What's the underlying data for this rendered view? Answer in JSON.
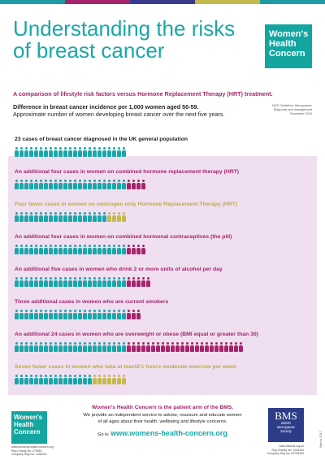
{
  "header": {
    "title_line1": "Understanding the risks",
    "title_line2": "of breast cancer",
    "logo_lines": [
      "Women's",
      "Health",
      "Concern"
    ]
  },
  "intro": {
    "subtitle": "A comparison of lifestyle risk factors versus Hormone Replacement Therapy (HRT) treatment.",
    "difference_bold": "Difference in breast cancer incidence per 1,000 women aged 50-59.",
    "difference_text": "Approximate number of women developing breast cancer over the next five years.",
    "nice_note": [
      "NICE Guideline, Menopause:",
      "Diagnosis and management",
      "November 2015"
    ]
  },
  "colors": {
    "teal": "#1aa7a8",
    "pink": "#a6246b",
    "olive": "#c5b94f"
  },
  "rows": [
    {
      "label": "23 cases of breast cancer diagnosed in the UK general population",
      "label_color": "dark",
      "teal": 23,
      "pink": 0,
      "olive": 0
    },
    {
      "label": "An additional four cases in women on combined hormone replacement therapy (HRT)",
      "label_color": "pink",
      "teal": 23,
      "pink": 4,
      "olive": 0
    },
    {
      "label": "Four fewer  cases in women on oestrogen only Hormone Replacement Therapy (HRT)",
      "label_color": "olive",
      "teal": 19,
      "pink": 0,
      "olive": 4
    },
    {
      "label": "An additional four cases in women on combined hormonal contraceptives (the pill)",
      "label_color": "pink",
      "teal": 23,
      "pink": 4,
      "olive": 0
    },
    {
      "label": "An additional five cases in women who drink 2 or more units of alcohol per day",
      "label_color": "pink",
      "teal": 23,
      "pink": 5,
      "olive": 0
    },
    {
      "label": "Three additional cases in women who are current smokers",
      "label_color": "pink",
      "teal": 23,
      "pink": 3,
      "olive": 0
    },
    {
      "label": "An additional 24 cases in women who are overweight or obese (BMI equal or greater than 30)",
      "label_color": "pink",
      "teal": 23,
      "pink": 24,
      "olive": 0
    },
    {
      "label": "Seven fewer cases in women who take at least2½ hours moderate exercise per week",
      "label_color": "olive",
      "teal": 16,
      "pink": 0,
      "olive": 7
    }
  ],
  "footer": {
    "heading": "Women's Health Concern is the patient arm of the BMS.",
    "line1": "We provide an independent service to advise, reassure and educate women",
    "line2": "of all ages about their health, wellbeing and lifestyle concerns.",
    "goto": "Go to",
    "url": "www.womens-health-concern.org",
    "logo_lines": [
      "Women's",
      "Health",
      "Concern"
    ],
    "left_tiny": [
      "www.womens-health-concern.org",
      "Reg Charity No: 279651",
      "Company Reg No: 1432023"
    ],
    "bms_big": "BMS",
    "bms_lines": [
      "British",
      "Menopause",
      "Society"
    ],
    "right_tiny": [
      "www.thebms.org.uk",
      "Reg Charity No: 1015144",
      "Company Reg No: 02759439"
    ],
    "date": "March 2017"
  }
}
